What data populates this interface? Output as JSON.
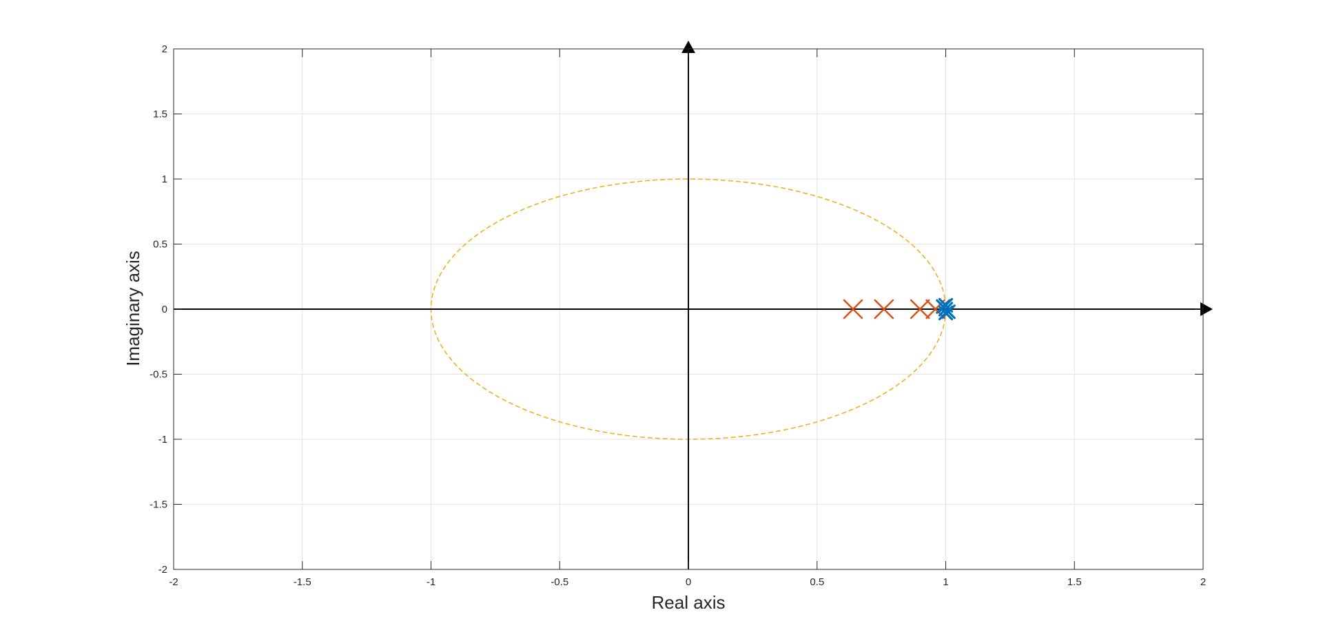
{
  "chart_data": {
    "type": "scatter",
    "title": "",
    "xlabel": "Real axis",
    "ylabel": "Imaginary axis",
    "xlim": [
      -2,
      2
    ],
    "ylim": [
      -2,
      2
    ],
    "xticks": [
      -2,
      -1.5,
      -1,
      -0.5,
      0,
      0.5,
      1,
      1.5,
      2
    ],
    "yticks": [
      -2,
      -1.5,
      -1,
      -0.5,
      0,
      0.5,
      1,
      1.5,
      2
    ],
    "xtick_labels": [
      "-2",
      "-1.5",
      "-1",
      "-0.5",
      "0",
      "0.5",
      "1",
      "1.5",
      "2"
    ],
    "ytick_labels": [
      "-2",
      "-1.5",
      "-1",
      "-0.5",
      "0",
      "0.5",
      "1",
      "1.5",
      "2"
    ],
    "grid": true,
    "axes_arrows": true,
    "unit_circle": {
      "center": [
        0,
        0
      ],
      "radius": 1,
      "style": "dashed",
      "color": "#EDB120"
    },
    "series": [
      {
        "marker": "x",
        "color": "#D95319",
        "points": [
          [
            0.64,
            0.0
          ],
          [
            0.76,
            0.0
          ],
          [
            0.9,
            0.0
          ],
          [
            0.96,
            0.0
          ]
        ]
      },
      {
        "marker": "x",
        "color": "#0072BD",
        "points": [
          [
            0.99,
            0.02
          ],
          [
            1.0,
            0.0
          ],
          [
            1.01,
            -0.02
          ],
          [
            1.0,
            0.03
          ],
          [
            1.0,
            -0.03
          ]
        ]
      }
    ],
    "colors": {
      "grid": "#e3e3e3",
      "axis": "#262626",
      "box": "#262626"
    }
  }
}
